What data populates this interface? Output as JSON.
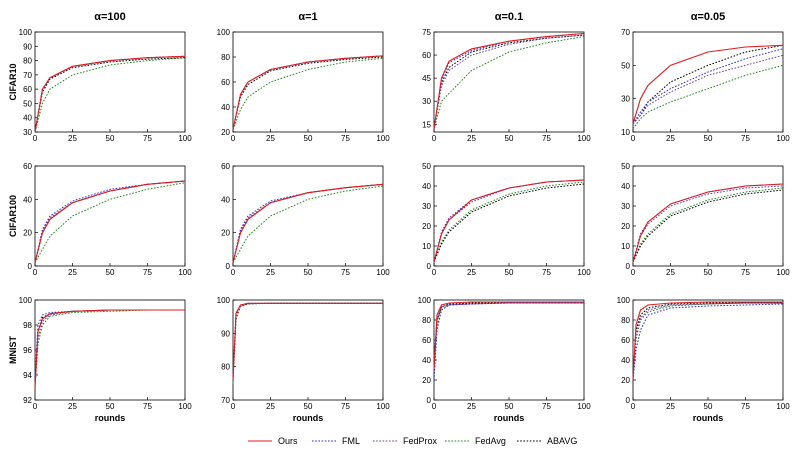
{
  "legend": [
    {
      "name": "Ours",
      "color": "#e41a1c",
      "dash": "solid"
    },
    {
      "name": "FML",
      "color": "#2b2bd8",
      "dash": "dotted"
    },
    {
      "name": "FedProx",
      "color": "#6a3d9a",
      "dash": "dotted"
    },
    {
      "name": "FedAvg",
      "color": "#1a8a1a",
      "dash": "dotted"
    },
    {
      "name": "ABAVG",
      "color": "#000000",
      "dash": "dotted"
    }
  ],
  "column_titles": [
    "α=100",
    "α=1",
    "α=0.1",
    "α=0.05"
  ],
  "row_labels": [
    "CIFAR10",
    "CIFAR100",
    "MNIST"
  ],
  "chart_data": [
    {
      "type": "line",
      "row": 0,
      "col": 0,
      "title": "α=100",
      "ylabel": "CIFAR10",
      "xlabel": "",
      "xlim": [
        0,
        100
      ],
      "ylim": [
        30,
        100
      ],
      "xticks": [
        0,
        25,
        50,
        75,
        100
      ],
      "yticks": [
        30,
        40,
        50,
        60,
        70,
        80,
        90,
        100
      ],
      "x": [
        0,
        5,
        10,
        25,
        50,
        75,
        100
      ],
      "series": [
        {
          "name": "Ours",
          "values": [
            30,
            60,
            68,
            76,
            80,
            82,
            83
          ]
        },
        {
          "name": "FML",
          "values": [
            30,
            60,
            68,
            76,
            80,
            82,
            83
          ]
        },
        {
          "name": "FedProx",
          "values": [
            30,
            60,
            68,
            76,
            80,
            82,
            83
          ]
        },
        {
          "name": "FedAvg",
          "values": [
            30,
            50,
            60,
            70,
            77,
            80,
            82
          ]
        },
        {
          "name": "ABAVG",
          "values": [
            30,
            58,
            67,
            75,
            79,
            81,
            82
          ]
        }
      ]
    },
    {
      "type": "line",
      "row": 0,
      "col": 1,
      "title": "α=1",
      "ylabel": "",
      "xlabel": "",
      "xlim": [
        0,
        100
      ],
      "ylim": [
        20,
        100
      ],
      "xticks": [
        0,
        25,
        50,
        75,
        100
      ],
      "yticks": [
        20,
        40,
        60,
        80,
        100
      ],
      "x": [
        0,
        5,
        10,
        25,
        50,
        75,
        100
      ],
      "series": [
        {
          "name": "Ours",
          "values": [
            22,
            50,
            60,
            70,
            76,
            79,
            81
          ]
        },
        {
          "name": "FML",
          "values": [
            22,
            50,
            60,
            70,
            76,
            79,
            81
          ]
        },
        {
          "name": "FedProx",
          "values": [
            22,
            50,
            60,
            70,
            76,
            79,
            81
          ]
        },
        {
          "name": "FedAvg",
          "values": [
            22,
            38,
            48,
            60,
            70,
            76,
            79
          ]
        },
        {
          "name": "ABAVG",
          "values": [
            22,
            48,
            58,
            69,
            75,
            78,
            80
          ]
        }
      ]
    },
    {
      "type": "line",
      "row": 0,
      "col": 2,
      "title": "α=0.1",
      "ylabel": "",
      "xlabel": "",
      "xlim": [
        0,
        100
      ],
      "ylim": [
        10,
        75
      ],
      "xticks": [
        0,
        25,
        50,
        75,
        100
      ],
      "yticks": [
        15,
        30,
        45,
        60,
        75
      ],
      "x": [
        0,
        5,
        10,
        25,
        50,
        75,
        100
      ],
      "series": [
        {
          "name": "Ours",
          "values": [
            12,
            45,
            56,
            64,
            69,
            72,
            74
          ]
        },
        {
          "name": "FML",
          "values": [
            12,
            44,
            55,
            63,
            69,
            72,
            74
          ]
        },
        {
          "name": "FedProx",
          "values": [
            12,
            40,
            50,
            60,
            67,
            71,
            73
          ]
        },
        {
          "name": "FedAvg",
          "values": [
            12,
            30,
            35,
            50,
            62,
            68,
            72
          ]
        },
        {
          "name": "ABAVG",
          "values": [
            12,
            42,
            52,
            62,
            68,
            71,
            73
          ]
        }
      ]
    },
    {
      "type": "line",
      "row": 0,
      "col": 3,
      "title": "α=0.05",
      "ylabel": "",
      "xlabel": "",
      "xlim": [
        0,
        100
      ],
      "ylim": [
        10,
        70
      ],
      "xticks": [
        0,
        25,
        50,
        75,
        100
      ],
      "yticks": [
        10,
        30,
        50,
        70
      ],
      "x": [
        0,
        5,
        10,
        25,
        50,
        75,
        100
      ],
      "series": [
        {
          "name": "Ours",
          "values": [
            15,
            30,
            38,
            50,
            58,
            61,
            62
          ]
        },
        {
          "name": "FML",
          "values": [
            15,
            22,
            28,
            36,
            46,
            54,
            60
          ]
        },
        {
          "name": "FedProx",
          "values": [
            15,
            20,
            26,
            34,
            44,
            50,
            56
          ]
        },
        {
          "name": "FedAvg",
          "values": [
            12,
            18,
            22,
            28,
            36,
            44,
            50
          ]
        },
        {
          "name": "ABAVG",
          "values": [
            15,
            20,
            28,
            40,
            50,
            58,
            62
          ]
        }
      ]
    },
    {
      "type": "line",
      "row": 1,
      "col": 0,
      "title": "",
      "ylabel": "CIFAR100",
      "xlabel": "",
      "xlim": [
        0,
        100
      ],
      "ylim": [
        0,
        60
      ],
      "xticks": [
        0,
        25,
        50,
        75,
        100
      ],
      "yticks": [
        0,
        20,
        40,
        60
      ],
      "x": [
        0,
        5,
        10,
        25,
        50,
        75,
        100
      ],
      "series": [
        {
          "name": "Ours",
          "values": [
            2,
            20,
            28,
            38,
            45,
            49,
            51
          ]
        },
        {
          "name": "FML",
          "values": [
            2,
            22,
            30,
            39,
            46,
            49,
            51
          ]
        },
        {
          "name": "FedProx",
          "values": [
            2,
            21,
            29,
            38,
            45,
            49,
            51
          ]
        },
        {
          "name": "FedAvg",
          "values": [
            2,
            10,
            18,
            30,
            40,
            46,
            50
          ]
        },
        {
          "name": "ABAVG",
          "values": [
            2,
            20,
            28,
            38,
            45,
            49,
            51
          ]
        }
      ]
    },
    {
      "type": "line",
      "row": 1,
      "col": 1,
      "title": "",
      "ylabel": "",
      "xlabel": "",
      "xlim": [
        0,
        100
      ],
      "ylim": [
        0,
        60
      ],
      "xticks": [
        0,
        25,
        50,
        75,
        100
      ],
      "yticks": [
        0,
        20,
        40,
        60
      ],
      "x": [
        0,
        5,
        10,
        25,
        50,
        75,
        100
      ],
      "series": [
        {
          "name": "Ours",
          "values": [
            2,
            20,
            28,
            38,
            44,
            47,
            49
          ]
        },
        {
          "name": "FML",
          "values": [
            2,
            22,
            30,
            39,
            44,
            47,
            49
          ]
        },
        {
          "name": "FedProx",
          "values": [
            2,
            21,
            29,
            38,
            44,
            47,
            49
          ]
        },
        {
          "name": "FedAvg",
          "values": [
            2,
            10,
            18,
            30,
            40,
            45,
            48
          ]
        },
        {
          "name": "ABAVG",
          "values": [
            2,
            20,
            28,
            38,
            44,
            47,
            49
          ]
        }
      ]
    },
    {
      "type": "line",
      "row": 1,
      "col": 2,
      "title": "",
      "ylabel": "",
      "xlabel": "",
      "xlim": [
        0,
        100
      ],
      "ylim": [
        0,
        50
      ],
      "xticks": [
        0,
        25,
        50,
        75,
        100
      ],
      "yticks": [
        0,
        10,
        20,
        30,
        40,
        50
      ],
      "x": [
        0,
        5,
        10,
        25,
        50,
        75,
        100
      ],
      "series": [
        {
          "name": "Ours",
          "values": [
            2,
            16,
            23,
            33,
            39,
            42,
            43
          ]
        },
        {
          "name": "FML",
          "values": [
            2,
            17,
            24,
            33,
            39,
            42,
            43
          ]
        },
        {
          "name": "FedProx",
          "values": [
            2,
            16,
            23,
            32,
            39,
            42,
            43
          ]
        },
        {
          "name": "FedAvg",
          "values": [
            2,
            12,
            18,
            28,
            36,
            40,
            42
          ]
        },
        {
          "name": "ABAVG",
          "values": [
            2,
            11,
            17,
            27,
            35,
            39,
            41
          ]
        }
      ]
    },
    {
      "type": "line",
      "row": 1,
      "col": 3,
      "title": "",
      "ylabel": "",
      "xlabel": "",
      "xlim": [
        0,
        100
      ],
      "ylim": [
        0,
        50
      ],
      "xticks": [
        0,
        25,
        50,
        75,
        100
      ],
      "yticks": [
        0,
        10,
        20,
        30,
        40,
        50
      ],
      "x": [
        0,
        5,
        10,
        25,
        50,
        75,
        100
      ],
      "series": [
        {
          "name": "Ours",
          "values": [
            2,
            15,
            22,
            31,
            37,
            40,
            41
          ]
        },
        {
          "name": "FML",
          "values": [
            2,
            16,
            22,
            31,
            37,
            40,
            41
          ]
        },
        {
          "name": "FedProx",
          "values": [
            2,
            15,
            21,
            30,
            36,
            39,
            40
          ]
        },
        {
          "name": "FedAvg",
          "values": [
            2,
            11,
            16,
            26,
            33,
            37,
            39
          ]
        },
        {
          "name": "ABAVG",
          "values": [
            2,
            10,
            15,
            25,
            32,
            36,
            38
          ]
        }
      ]
    },
    {
      "type": "line",
      "row": 2,
      "col": 0,
      "title": "",
      "ylabel": "MNIST",
      "xlabel": "rounds",
      "xlim": [
        0,
        100
      ],
      "ylim": [
        92,
        100
      ],
      "xticks": [
        0,
        25,
        50,
        75,
        100
      ],
      "yticks": [
        92,
        94,
        96,
        98,
        100
      ],
      "x": [
        0,
        2,
        5,
        10,
        25,
        50,
        75,
        100
      ],
      "series": [
        {
          "name": "Ours",
          "values": [
            93,
            97.5,
            98.5,
            98.9,
            99.1,
            99.2,
            99.2,
            99.2
          ]
        },
        {
          "name": "FML",
          "values": [
            94,
            98,
            98.8,
            99,
            99.1,
            99.2,
            99.2,
            99.2
          ]
        },
        {
          "name": "FedProx",
          "values": [
            93,
            97,
            98.3,
            98.8,
            99.1,
            99.2,
            99.2,
            99.2
          ]
        },
        {
          "name": "FedAvg",
          "values": [
            93,
            96.5,
            98,
            98.7,
            99,
            99.1,
            99.2,
            99.2
          ]
        },
        {
          "name": "ABAVG",
          "values": [
            93.5,
            97.5,
            98.6,
            98.9,
            99.1,
            99.2,
            99.2,
            99.2
          ]
        }
      ]
    },
    {
      "type": "line",
      "row": 2,
      "col": 1,
      "title": "",
      "ylabel": "",
      "xlabel": "rounds",
      "xlim": [
        0,
        100
      ],
      "ylim": [
        70,
        100
      ],
      "xticks": [
        0,
        25,
        50,
        75,
        100
      ],
      "yticks": [
        70,
        80,
        90,
        100
      ],
      "x": [
        0,
        2,
        5,
        10,
        25,
        50,
        75,
        100
      ],
      "series": [
        {
          "name": "Ours",
          "values": [
            76,
            96,
            98.5,
            99,
            99,
            99,
            99,
            99
          ]
        },
        {
          "name": "FML",
          "values": [
            78,
            96,
            98.5,
            99,
            99,
            99,
            99,
            99
          ]
        },
        {
          "name": "FedProx",
          "values": [
            76,
            95,
            98.2,
            98.9,
            99,
            99,
            99,
            99
          ]
        },
        {
          "name": "FedAvg",
          "values": [
            75,
            94,
            98,
            98.8,
            99,
            99,
            99,
            99
          ]
        },
        {
          "name": "ABAVG",
          "values": [
            76,
            95.5,
            98.3,
            98.9,
            99,
            99,
            99,
            99
          ]
        }
      ]
    },
    {
      "type": "line",
      "row": 2,
      "col": 2,
      "title": "",
      "ylabel": "",
      "xlabel": "rounds",
      "xlim": [
        0,
        100
      ],
      "ylim": [
        0,
        100
      ],
      "xticks": [
        0,
        25,
        50,
        75,
        100
      ],
      "yticks": [
        0,
        20,
        40,
        60,
        80,
        100
      ],
      "x": [
        0,
        2,
        5,
        10,
        25,
        50,
        75,
        100
      ],
      "series": [
        {
          "name": "Ours",
          "values": [
            30,
            85,
            95,
            97,
            98,
            98,
            98,
            98
          ]
        },
        {
          "name": "FML",
          "values": [
            20,
            70,
            90,
            95,
            96,
            97,
            97,
            97
          ]
        },
        {
          "name": "FedProx",
          "values": [
            40,
            80,
            93,
            95,
            96,
            97,
            97,
            97
          ]
        },
        {
          "name": "FedAvg",
          "values": [
            30,
            75,
            90,
            95,
            97,
            97,
            97,
            97
          ]
        },
        {
          "name": "ABAVG",
          "values": [
            35,
            80,
            93,
            96,
            97,
            97,
            97,
            97
          ]
        }
      ]
    },
    {
      "type": "line",
      "row": 2,
      "col": 3,
      "title": "",
      "ylabel": "",
      "xlabel": "rounds",
      "xlim": [
        0,
        100
      ],
      "ylim": [
        0,
        100
      ],
      "xticks": [
        0,
        25,
        50,
        75,
        100
      ],
      "yticks": [
        0,
        20,
        40,
        60,
        80,
        100
      ],
      "x": [
        0,
        2,
        5,
        10,
        25,
        50,
        75,
        100
      ],
      "series": [
        {
          "name": "Ours",
          "values": [
            20,
            75,
            90,
            95,
            97,
            98,
            98,
            98
          ]
        },
        {
          "name": "FML",
          "values": [
            20,
            50,
            70,
            85,
            92,
            94,
            95,
            96
          ]
        },
        {
          "name": "FedProx",
          "values": [
            20,
            65,
            82,
            90,
            95,
            96,
            97,
            97
          ]
        },
        {
          "name": "FedAvg",
          "values": [
            20,
            60,
            80,
            88,
            94,
            96,
            97,
            97
          ]
        },
        {
          "name": "ABAVG",
          "values": [
            20,
            70,
            85,
            92,
            96,
            97,
            97,
            97
          ]
        }
      ]
    }
  ]
}
